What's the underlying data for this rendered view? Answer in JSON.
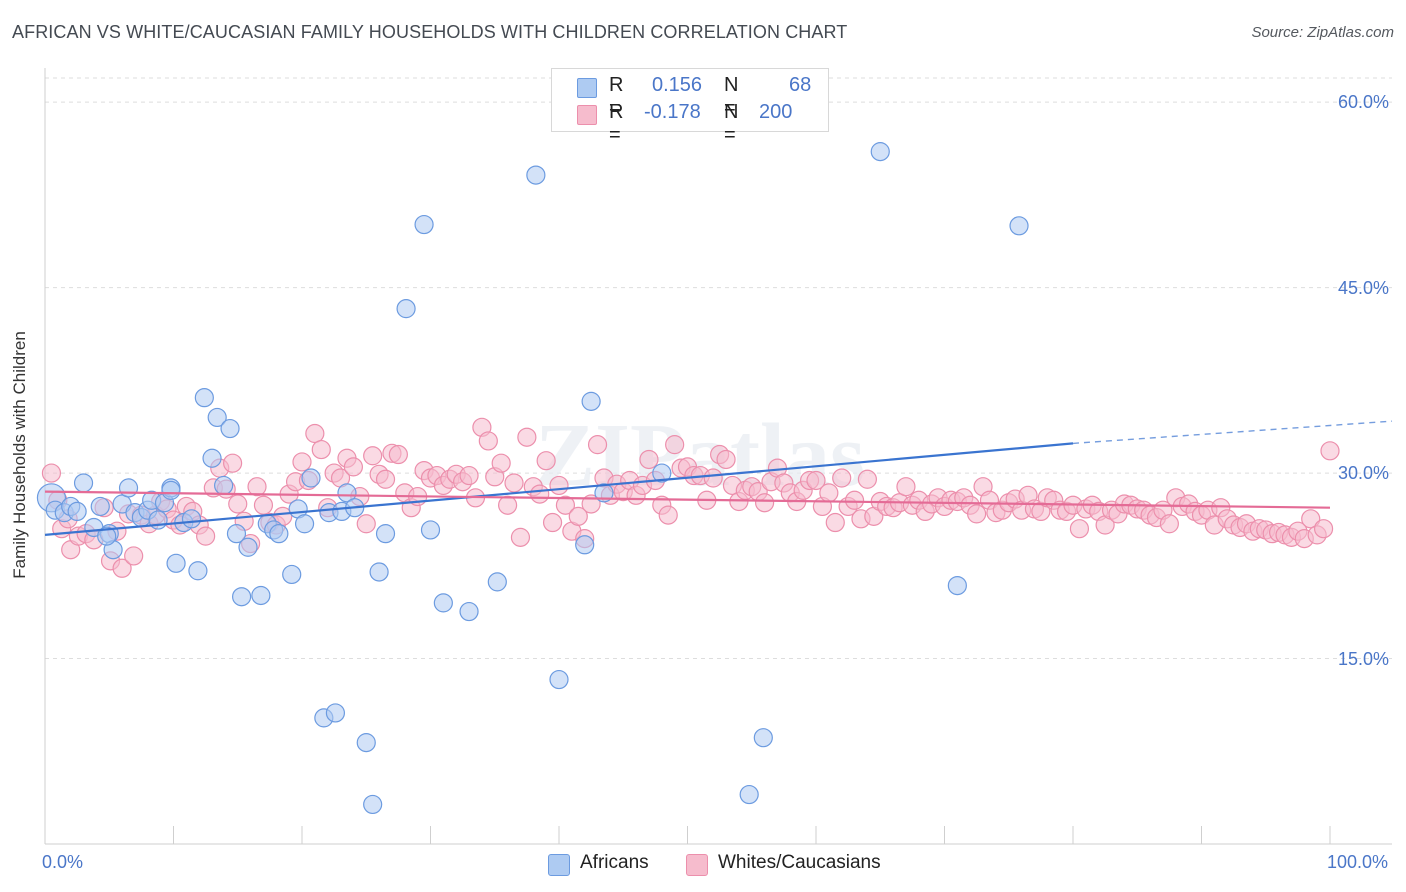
{
  "title": "AFRICAN VS WHITE/CAUCASIAN FAMILY HOUSEHOLDS WITH CHILDREN CORRELATION CHART",
  "source": "Source: ZipAtlas.com",
  "watermark": "ZIPatlas",
  "legend": {
    "rows": [
      {
        "r_label": "R =",
        "r_value": "0.156",
        "n_label": "N =",
        "n_value": "68"
      },
      {
        "r_label": "R =",
        "r_value": "-0.178",
        "n_label": "N =",
        "n_value": "200"
      }
    ],
    "bottom": [
      "Africans",
      "Whites/Caucasians"
    ]
  },
  "colors": {
    "africans_fill": "#aecbf2",
    "africans_stroke": "#6c9be0",
    "africans_line": "#3a74d0",
    "whites_fill": "#f6bccd",
    "whites_stroke": "#ec8fac",
    "whites_line": "#e46b96",
    "axis_label": "#4a76c8",
    "grid": "#dddddd"
  },
  "chart_data": {
    "type": "scatter",
    "title": "AFRICAN VS WHITE/CAUCASIAN FAMILY HOUSEHOLDS WITH CHILDREN CORRELATION CHART",
    "xlabel": "",
    "ylabel": "Family Households with Children",
    "xlim": [
      0,
      100
    ],
    "ylim": [
      0,
      62.6
    ],
    "x_tick_labels": [
      "0.0%",
      "100.0%"
    ],
    "y_ticks": [
      15,
      30,
      45,
      60
    ],
    "y_tick_labels": [
      "15.0%",
      "30.0%",
      "45.0%",
      "60.0%"
    ],
    "series": [
      {
        "name": "Africans",
        "R": 0.156,
        "N": 68,
        "trend": {
          "x0": 0,
          "y0": 25.0,
          "x1": 80,
          "y1": 32.4,
          "dash_to_x": 100,
          "dash_to_y": 34.2
        },
        "points": [
          [
            0.5,
            28.0
          ],
          [
            0.8,
            27.0
          ],
          [
            1.5,
            26.8
          ],
          [
            2,
            27.3
          ],
          [
            2.5,
            26.9
          ],
          [
            3,
            29.2
          ],
          [
            3.8,
            25.6
          ],
          [
            4.3,
            27.3
          ],
          [
            5,
            25.1
          ],
          [
            5.3,
            23.8
          ],
          [
            6,
            27.5
          ],
          [
            6.5,
            28.8
          ],
          [
            7,
            26.8
          ],
          [
            7.5,
            26.4
          ],
          [
            8,
            27.0
          ],
          [
            8.3,
            27.8
          ],
          [
            8.8,
            26.2
          ],
          [
            9.3,
            27.6
          ],
          [
            9.8,
            28.8
          ],
          [
            10.2,
            22.7
          ],
          [
            10.8,
            26.0
          ],
          [
            11.4,
            26.3
          ],
          [
            11.9,
            22.1
          ],
          [
            12.4,
            36.1
          ],
          [
            13,
            31.2
          ],
          [
            13.4,
            34.5
          ],
          [
            13.9,
            29.0
          ],
          [
            14.4,
            33.6
          ],
          [
            14.9,
            25.1
          ],
          [
            15.3,
            20.0
          ],
          [
            15.8,
            24.0
          ],
          [
            16.8,
            20.1
          ],
          [
            17.3,
            25.9
          ],
          [
            17.8,
            25.4
          ],
          [
            18.2,
            25.1
          ],
          [
            19.2,
            21.8
          ],
          [
            19.7,
            27.1
          ],
          [
            20.2,
            25.9
          ],
          [
            20.7,
            29.6
          ],
          [
            21.7,
            10.2
          ],
          [
            22.1,
            26.8
          ],
          [
            22.6,
            10.6
          ],
          [
            23.1,
            26.9
          ],
          [
            23.5,
            28.4
          ],
          [
            24.1,
            27.2
          ],
          [
            25.0,
            8.2
          ],
          [
            25.5,
            3.2
          ],
          [
            26.0,
            22.0
          ],
          [
            26.5,
            25.1
          ],
          [
            28.1,
            43.3
          ],
          [
            29.5,
            50.1
          ],
          [
            30.0,
            25.4
          ],
          [
            31.0,
            19.5
          ],
          [
            33.0,
            18.8
          ],
          [
            35.2,
            21.2
          ],
          [
            38.2,
            54.1
          ],
          [
            40.0,
            13.3
          ],
          [
            42.0,
            24.2
          ],
          [
            42.5,
            35.8
          ],
          [
            43.5,
            28.4
          ],
          [
            48.0,
            30.0
          ],
          [
            54.8,
            4.0
          ],
          [
            55.9,
            8.6
          ],
          [
            65.0,
            56.0
          ],
          [
            71.0,
            20.9
          ],
          [
            75.8,
            50.0
          ],
          [
            9.8,
            28.6
          ],
          [
            4.8,
            24.9
          ]
        ]
      },
      {
        "name": "Whites/Caucasians",
        "R": -0.178,
        "N": 200,
        "trend": {
          "x0": 0,
          "y0": 28.5,
          "x1": 100,
          "y1": 27.2
        },
        "points": [
          [
            0.5,
            30.0
          ],
          [
            1,
            27.8
          ],
          [
            1.3,
            25.5
          ],
          [
            1.8,
            26.3
          ],
          [
            2.0,
            23.8
          ],
          [
            2.6,
            24.9
          ],
          [
            3.2,
            25.1
          ],
          [
            3.8,
            24.6
          ],
          [
            4.6,
            27.2
          ],
          [
            5.1,
            22.9
          ],
          [
            5.6,
            25.3
          ],
          [
            6.0,
            22.3
          ],
          [
            6.5,
            26.7
          ],
          [
            6.9,
            23.3
          ],
          [
            7.5,
            26.6
          ],
          [
            8.1,
            25.9
          ],
          [
            8.6,
            26.6
          ],
          [
            9.0,
            27.7
          ],
          [
            9.5,
            27.1
          ],
          [
            10.0,
            26.2
          ],
          [
            10.5,
            25.8
          ],
          [
            11.0,
            27.3
          ],
          [
            11.5,
            26.9
          ],
          [
            12.0,
            25.8
          ],
          [
            12.5,
            24.9
          ],
          [
            13.1,
            28.8
          ],
          [
            13.6,
            30.4
          ],
          [
            14.1,
            28.7
          ],
          [
            14.6,
            30.8
          ],
          [
            15.0,
            27.5
          ],
          [
            15.5,
            26.1
          ],
          [
            16.0,
            24.3
          ],
          [
            16.5,
            28.9
          ],
          [
            17.0,
            27.4
          ],
          [
            17.5,
            26.0
          ],
          [
            18.0,
            25.8
          ],
          [
            18.5,
            26.5
          ],
          [
            19.0,
            28.3
          ],
          [
            19.5,
            29.3
          ],
          [
            20.0,
            30.9
          ],
          [
            20.5,
            29.4
          ],
          [
            21.0,
            33.2
          ],
          [
            21.5,
            31.9
          ],
          [
            22.0,
            27.2
          ],
          [
            22.5,
            30.0
          ],
          [
            23.0,
            29.6
          ],
          [
            23.5,
            31.2
          ],
          [
            24.0,
            30.5
          ],
          [
            24.5,
            28.1
          ],
          [
            25.0,
            25.9
          ],
          [
            25.5,
            31.4
          ],
          [
            26.0,
            29.9
          ],
          [
            26.5,
            29.5
          ],
          [
            27.0,
            31.6
          ],
          [
            27.5,
            31.5
          ],
          [
            28.0,
            28.4
          ],
          [
            28.5,
            27.2
          ],
          [
            29.0,
            28.1
          ],
          [
            29.5,
            30.2
          ],
          [
            30.0,
            29.6
          ],
          [
            30.5,
            29.8
          ],
          [
            31.0,
            29.0
          ],
          [
            31.5,
            29.5
          ],
          [
            32.0,
            29.9
          ],
          [
            32.5,
            29.3
          ],
          [
            33.0,
            29.8
          ],
          [
            33.5,
            28.0
          ],
          [
            34.0,
            33.7
          ],
          [
            34.5,
            32.6
          ],
          [
            35.0,
            29.7
          ],
          [
            35.5,
            30.8
          ],
          [
            36.0,
            27.4
          ],
          [
            36.5,
            29.2
          ],
          [
            37.0,
            24.8
          ],
          [
            37.5,
            32.9
          ],
          [
            38.0,
            28.9
          ],
          [
            38.5,
            28.3
          ],
          [
            39.0,
            31.0
          ],
          [
            39.5,
            26.0
          ],
          [
            40.0,
            29.0
          ],
          [
            40.5,
            27.4
          ],
          [
            41.0,
            25.3
          ],
          [
            41.5,
            26.5
          ],
          [
            42.0,
            24.7
          ],
          [
            42.5,
            27.5
          ],
          [
            43.0,
            32.3
          ],
          [
            43.5,
            29.6
          ],
          [
            44.0,
            28.2
          ],
          [
            44.5,
            29.1
          ],
          [
            45.0,
            28.5
          ],
          [
            45.5,
            29.4
          ],
          [
            46.0,
            28.2
          ],
          [
            46.5,
            29.0
          ],
          [
            47.0,
            31.1
          ],
          [
            47.5,
            29.4
          ],
          [
            48.0,
            27.4
          ],
          [
            48.5,
            26.6
          ],
          [
            49.0,
            32.3
          ],
          [
            49.5,
            30.4
          ],
          [
            50.0,
            30.5
          ],
          [
            50.5,
            29.8
          ],
          [
            51.0,
            29.8
          ],
          [
            51.5,
            27.8
          ],
          [
            52.0,
            29.6
          ],
          [
            52.5,
            31.5
          ],
          [
            53.0,
            31.1
          ],
          [
            53.5,
            29.0
          ],
          [
            54.0,
            27.7
          ],
          [
            54.5,
            28.6
          ],
          [
            55.0,
            28.9
          ],
          [
            55.5,
            28.5
          ],
          [
            56.0,
            27.6
          ],
          [
            56.5,
            29.3
          ],
          [
            57.0,
            30.4
          ],
          [
            57.5,
            29.2
          ],
          [
            58.0,
            28.4
          ],
          [
            58.5,
            27.7
          ],
          [
            59.0,
            28.6
          ],
          [
            59.5,
            29.4
          ],
          [
            60.0,
            29.4
          ],
          [
            60.5,
            27.3
          ],
          [
            61.0,
            28.4
          ],
          [
            61.5,
            26.0
          ],
          [
            62.0,
            29.6
          ],
          [
            62.5,
            27.3
          ],
          [
            63.0,
            27.8
          ],
          [
            63.5,
            26.3
          ],
          [
            64.0,
            29.5
          ],
          [
            64.5,
            26.5
          ],
          [
            65.0,
            27.7
          ],
          [
            65.5,
            27.3
          ],
          [
            66.0,
            27.2
          ],
          [
            66.5,
            27.6
          ],
          [
            67.0,
            28.9
          ],
          [
            67.5,
            27.4
          ],
          [
            68.0,
            27.8
          ],
          [
            68.5,
            26.9
          ],
          [
            69.0,
            27.5
          ],
          [
            69.5,
            28.0
          ],
          [
            70.0,
            27.3
          ],
          [
            70.5,
            27.8
          ],
          [
            71.0,
            27.7
          ],
          [
            71.5,
            28.0
          ],
          [
            72.0,
            27.4
          ],
          [
            72.5,
            26.7
          ],
          [
            73.0,
            28.9
          ],
          [
            73.5,
            27.8
          ],
          [
            74.0,
            26.8
          ],
          [
            74.5,
            27.0
          ],
          [
            75.0,
            27.6
          ],
          [
            75.5,
            27.9
          ],
          [
            76.0,
            27.0
          ],
          [
            76.5,
            28.2
          ],
          [
            77.0,
            27.1
          ],
          [
            77.5,
            26.9
          ],
          [
            78.0,
            28.0
          ],
          [
            78.5,
            27.8
          ],
          [
            79.0,
            27.0
          ],
          [
            79.5,
            26.9
          ],
          [
            80.0,
            27.4
          ],
          [
            80.5,
            25.5
          ],
          [
            81.0,
            27.1
          ],
          [
            81.5,
            27.4
          ],
          [
            82.0,
            26.9
          ],
          [
            82.5,
            25.8
          ],
          [
            83.0,
            27.0
          ],
          [
            83.5,
            26.7
          ],
          [
            84.0,
            27.5
          ],
          [
            84.5,
            27.4
          ],
          [
            85.0,
            27.1
          ],
          [
            85.5,
            27.0
          ],
          [
            86.0,
            26.6
          ],
          [
            86.5,
            26.4
          ],
          [
            87.0,
            27.0
          ],
          [
            87.5,
            25.9
          ],
          [
            88.0,
            28.0
          ],
          [
            88.5,
            27.3
          ],
          [
            89.0,
            27.5
          ],
          [
            89.5,
            26.9
          ],
          [
            90.0,
            26.6
          ],
          [
            90.5,
            27.0
          ],
          [
            91.0,
            25.8
          ],
          [
            91.5,
            27.2
          ],
          [
            92.0,
            26.3
          ],
          [
            92.5,
            25.8
          ],
          [
            93.0,
            25.6
          ],
          [
            93.5,
            25.9
          ],
          [
            94.0,
            25.3
          ],
          [
            94.5,
            25.5
          ],
          [
            95.0,
            25.4
          ],
          [
            95.5,
            25.1
          ],
          [
            96.0,
            25.2
          ],
          [
            96.5,
            25.0
          ],
          [
            97.0,
            24.8
          ],
          [
            97.5,
            25.3
          ],
          [
            98.0,
            24.7
          ],
          [
            98.5,
            26.3
          ],
          [
            99.0,
            25.0
          ],
          [
            99.5,
            25.5
          ],
          [
            100,
            31.8
          ]
        ]
      }
    ]
  }
}
